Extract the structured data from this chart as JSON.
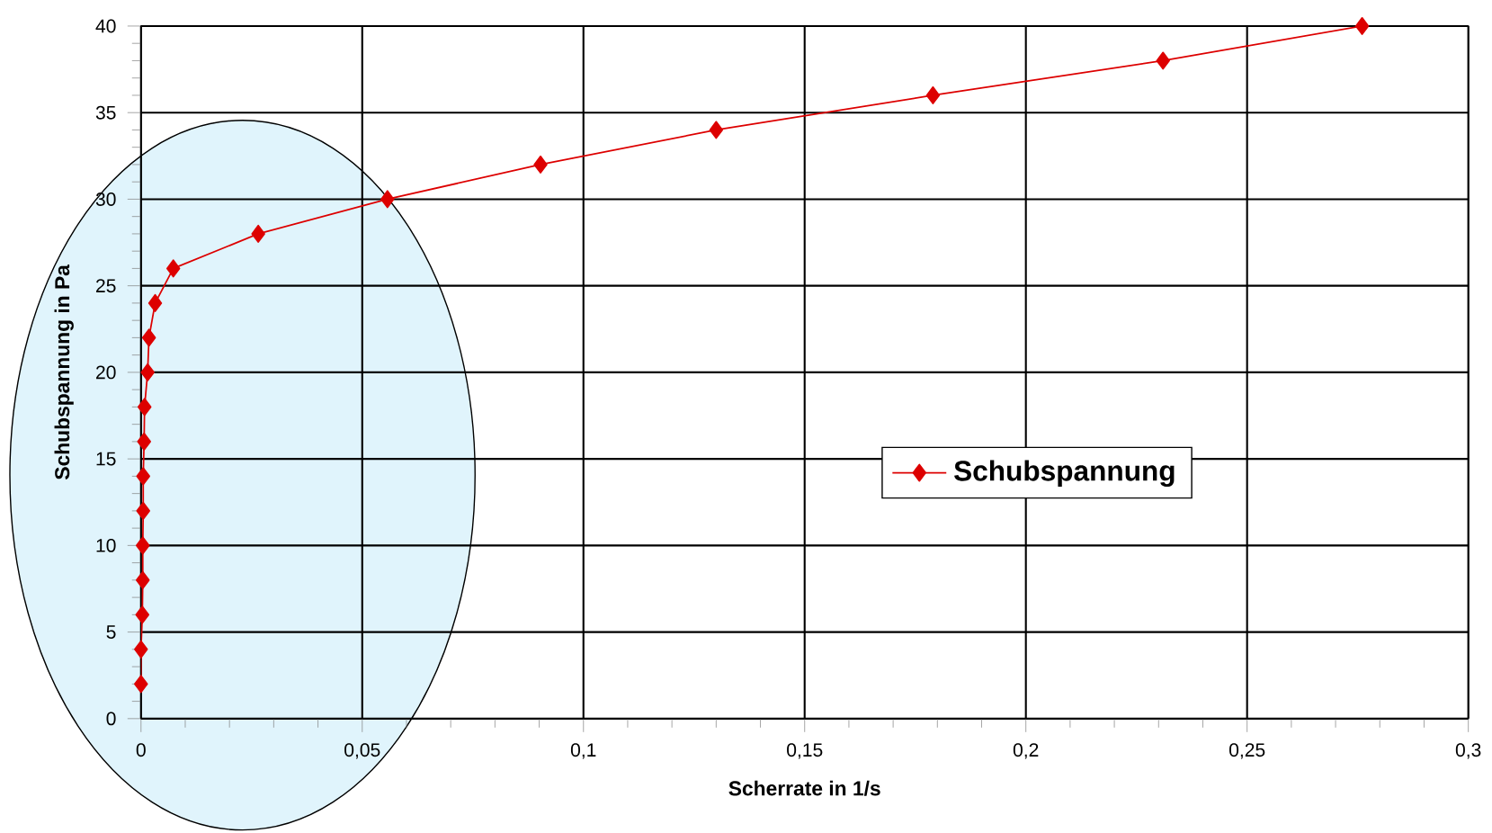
{
  "chart_data": {
    "type": "line",
    "xlabel": "Scherrate in 1/s",
    "ylabel": "Schubspannung in Pa",
    "x": [
      0,
      0,
      0.0003,
      0.0004,
      0.0004,
      0.0005,
      0.0005,
      0.0007,
      0.0008,
      0.0015,
      0.0018,
      0.0032,
      0.0073,
      0.0265,
      0.0557,
      0.0903,
      0.13,
      0.179,
      0.231,
      0.276
    ],
    "series": [
      {
        "name": "Schubspannung",
        "color": "#dd0000",
        "values": [
          2,
          4,
          6,
          8,
          10,
          12,
          14,
          16,
          18,
          20,
          22,
          24,
          26,
          28,
          30,
          32,
          34,
          36,
          38,
          40
        ]
      }
    ],
    "xlim": [
      0,
      0.3
    ],
    "xticks": [
      0,
      {
        "value": 0.05,
        "label": "0,05"
      },
      {
        "value": 0.1,
        "label": "0,1"
      },
      {
        "value": 0.15,
        "label": "0,15"
      },
      {
        "value": 0.2,
        "label": "0,2"
      },
      {
        "value": 0.25,
        "label": "0,25"
      },
      {
        "value": 0.3,
        "label": "0,3"
      }
    ],
    "ylim": [
      0,
      40
    ],
    "yticks": [
      0,
      5,
      10,
      15,
      20,
      25,
      30,
      35,
      40
    ],
    "grid": true,
    "legend": "center",
    "marker": "diamond",
    "line_style": "solid"
  }
}
